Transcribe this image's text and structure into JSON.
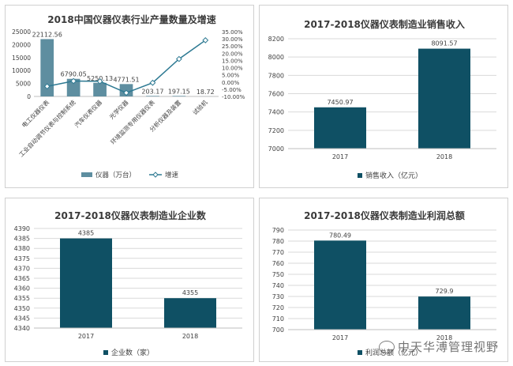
{
  "colors": {
    "bar": "#0f5064",
    "bar_light": "#5e8ea0",
    "line": "#2e7a93",
    "grid": "#d9d9d9",
    "axis": "#bfbfbf"
  },
  "watermark": {
    "text": "中天华溥管理视野",
    "icon": "wechat-icon"
  },
  "chart_data": [
    {
      "type": "bar",
      "title": "2018中国仪器仪表行业产量数量及增速",
      "categories": [
        "电工仪器仪表",
        "工业自动调节仪表与控制系统",
        "汽车仪表仪器",
        "光学仪器",
        "环境监测专用仪器仪表",
        "分析仪器及装置",
        "试验机"
      ],
      "series": [
        {
          "name": "仪器（万台）",
          "type": "bar",
          "axis": "left",
          "values": [
            22112.56,
            6790.05,
            5250.13,
            4771.51,
            203.17,
            197.15,
            18.72
          ],
          "labels": [
            "22112.56",
            "6790.05",
            "5250.13",
            "4771.51",
            "203.17",
            "197.15",
            "18.72"
          ]
        },
        {
          "name": "增速",
          "type": "line",
          "axis": "right",
          "values": [
            -0.03,
            0.007,
            0.005,
            -0.075,
            -0.005,
            0.16,
            0.29
          ]
        }
      ],
      "ylim": [
        0,
        25000
      ],
      "yticks": [
        "0",
        "5000",
        "10000",
        "15000",
        "20000",
        "25000"
      ],
      "y2lim": [
        -0.1,
        0.35
      ],
      "y2ticks": [
        "-10.00%",
        "-5.00%",
        "0.00%",
        "5.00%",
        "10.00%",
        "15.00%",
        "20.00%",
        "25.00%",
        "30.00%",
        "35.00%"
      ],
      "legend": "bottom"
    },
    {
      "type": "bar",
      "title": "2017-2018仪器仪表制造业销售收入",
      "categories": [
        "2017",
        "2018"
      ],
      "series": [
        {
          "name": "销售收入（亿元）",
          "values": [
            7450.97,
            8091.57
          ],
          "labels": [
            "7450.97",
            "8091.57"
          ]
        }
      ],
      "ylim": [
        7000,
        8200
      ],
      "yticks": [
        "7000",
        "7200",
        "7400",
        "7600",
        "7800",
        "8000",
        "8200"
      ],
      "legend": "bottom-left"
    },
    {
      "type": "bar",
      "title": "2017-2018仪器仪表制造业企业数",
      "categories": [
        "2017",
        "2018"
      ],
      "series": [
        {
          "name": "企业数（家）",
          "values": [
            4385,
            4355
          ],
          "labels": [
            "4385",
            "4355"
          ]
        }
      ],
      "ylim": [
        4340,
        4390
      ],
      "yticks": [
        "4340",
        "4345",
        "4350",
        "4355",
        "4360",
        "4365",
        "4370",
        "4375",
        "4380",
        "4385",
        "4390"
      ],
      "legend": "bottom-left"
    },
    {
      "type": "bar",
      "title": "2017-2018仪器仪表制造业利润总额",
      "categories": [
        "2017",
        "2018"
      ],
      "series": [
        {
          "name": "利润总额（亿元）",
          "values": [
            780.49,
            729.9
          ],
          "labels": [
            "780.49",
            "729.9"
          ]
        }
      ],
      "ylim": [
        700,
        790
      ],
      "yticks": [
        "700",
        "710",
        "720",
        "730",
        "740",
        "750",
        "760",
        "770",
        "780",
        "790"
      ],
      "legend": "bottom-left"
    }
  ]
}
